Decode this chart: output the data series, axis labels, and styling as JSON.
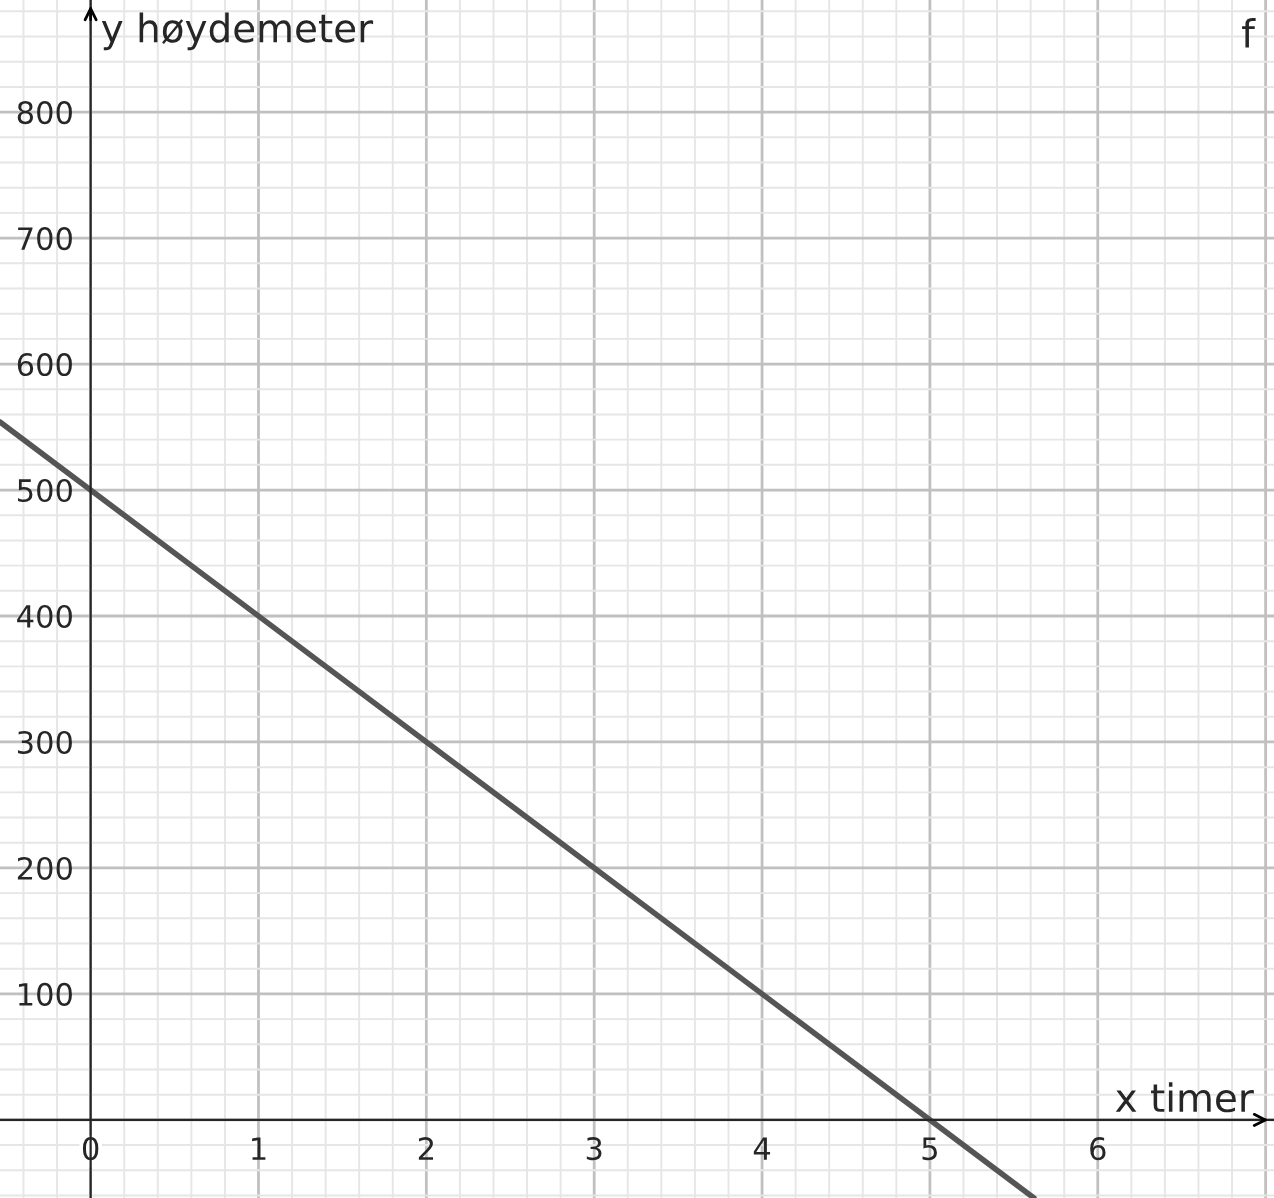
{
  "chart_data": {
    "type": "line",
    "xlabel": "x timer",
    "ylabel": "y høydemeter",
    "annotations": [
      "f"
    ],
    "series": [
      {
        "color": "#555555",
        "x": [
          -0.54,
          5.62
        ],
        "values": [
          554,
          -62
        ]
      }
    ],
    "xlim": [
      -0.54,
      7.05
    ],
    "ylim": [
      -62,
      889
    ],
    "xticks": [
      0,
      1,
      2,
      3,
      4,
      5,
      6
    ],
    "yticks": [
      100,
      200,
      300,
      400,
      500,
      600,
      700,
      800
    ],
    "grid": true,
    "legend": false,
    "marker": "none",
    "line_style": "solid"
  }
}
